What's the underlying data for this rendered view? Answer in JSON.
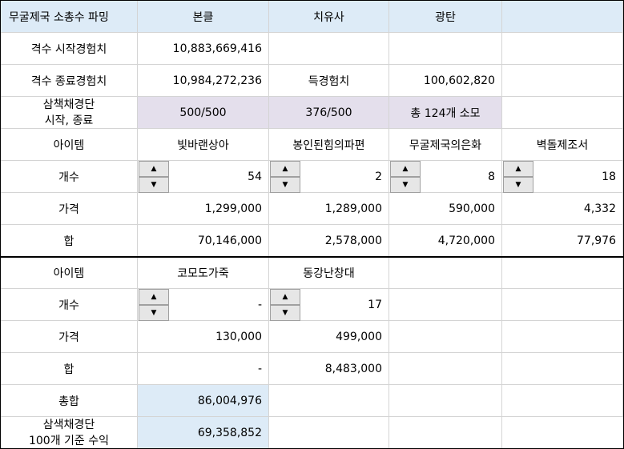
{
  "header": {
    "col0": "무굴제국 소총수 파밍",
    "col1": "본클",
    "col2": "치유사",
    "col3": "광탄",
    "col4": ""
  },
  "row_start_exp": {
    "label": "격수 시작경험치",
    "value": "10,883,669,416"
  },
  "row_end_exp": {
    "label": "격수 종료경험치",
    "value": "10,984,272,236",
    "gain_label": "득경험치",
    "gain_value": "100,602,820"
  },
  "row_consumables": {
    "label_line1": "삼책채경단",
    "label_line2": "시작, 종료",
    "bonkle": "500/500",
    "healer": "376/500",
    "total": "총 124개 소모"
  },
  "table1": {
    "item_label": "아이템",
    "count_label": "개수",
    "price_label": "가격",
    "sum_label": "합",
    "items": [
      {
        "name": "빛바랜상아",
        "count": "54",
        "price": "1,299,000",
        "sum": "70,146,000"
      },
      {
        "name": "봉인된힘의파편",
        "count": "2",
        "price": "1,289,000",
        "sum": "2,578,000"
      },
      {
        "name": "무굴제국의은화",
        "count": "8",
        "price": "590,000",
        "sum": "4,720,000"
      },
      {
        "name": "벽돌제조서",
        "count": "18",
        "price": "4,332",
        "sum": "77,976"
      }
    ]
  },
  "table2": {
    "item_label": "아이템",
    "count_label": "개수",
    "price_label": "가격",
    "sum_label": "합",
    "items": [
      {
        "name": "코모도가죽",
        "count": "-",
        "price": "130,000",
        "sum": "-"
      },
      {
        "name": "동강난창대",
        "count": "17",
        "price": "499,000",
        "sum": "8,483,000"
      }
    ]
  },
  "totals": {
    "total_label": "총합",
    "total_value": "86,004,976",
    "profit_label_line1": "삼색채경단",
    "profit_label_line2": "100개 기준 수익",
    "profit_value": "69,358,852"
  },
  "icons": {
    "up": "▲",
    "down": "▼"
  },
  "colors": {
    "header_bg": "#ddebf7",
    "consumable_bg": "#e4dfec",
    "total_bg": "#ddebf7"
  }
}
